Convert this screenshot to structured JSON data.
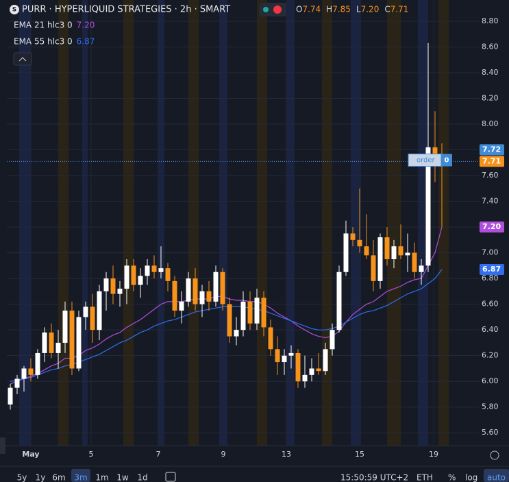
{
  "header": {
    "title": "PURR · HYPERLIQUID STRATEGIES · 2h · SMART",
    "ohlc": [
      {
        "key": "O",
        "value": "7.74"
      },
      {
        "key": "H",
        "value": "7.85"
      },
      {
        "key": "L",
        "value": "7.20"
      },
      {
        "key": "C",
        "value": "7.71"
      }
    ]
  },
  "chart_data": {
    "type": "candlestick",
    "ylim": [
      5.5,
      8.965
    ],
    "yticks": [
      {
        "value": 5.6,
        "label": "5.60"
      },
      {
        "value": 5.8,
        "label": "5.80"
      },
      {
        "value": 6,
        "label": "6.00"
      },
      {
        "value": 6.2,
        "label": "6.20"
      },
      {
        "value": 6.4,
        "label": "6.40"
      },
      {
        "value": 6.6,
        "label": "6.60"
      },
      {
        "value": 6.8,
        "label": "6.80"
      },
      {
        "value": 7,
        "label": "7.00"
      },
      {
        "value": 7.2,
        "label": "7.20"
      },
      {
        "value": 7.4,
        "label": "7.40"
      },
      {
        "value": 7.6,
        "label": "7.60"
      },
      {
        "value": 7.8,
        "label": "7.80"
      },
      {
        "value": 8,
        "label": "8.00"
      },
      {
        "value": 8.2,
        "label": "8.20"
      },
      {
        "value": 8.4,
        "label": "8.40"
      },
      {
        "value": 8.6,
        "label": "8.60"
      },
      {
        "value": 8.8,
        "label": "8.80"
      }
    ],
    "grid": true,
    "up_color": "#ffffff",
    "down_color": "#f7931a",
    "x_labels": [
      "May",
      "5",
      "7",
      "9",
      "13",
      "15",
      "19"
    ],
    "open": [
      5.82,
      5.95,
      6.02,
      6.1,
      6.05,
      6.22,
      6.38,
      6.22,
      6.3,
      6.55,
      6.1,
      6.5,
      6.58,
      6.4,
      6.7,
      6.8,
      6.68,
      6.72,
      6.9,
      6.75,
      6.82,
      6.9,
      6.85,
      6.88,
      6.78,
      6.55,
      6.62,
      6.8,
      6.6,
      6.7,
      6.62,
      6.85,
      6.6,
      6.35,
      6.4,
      6.62,
      6.45,
      6.65,
      6.42,
      6.25,
      6.15,
      6.2,
      6.22,
      6.0,
      6.05,
      6.1,
      6.08,
      6.25,
      6.4,
      6.85,
      7.15,
      7.1,
      7.05,
      6.98,
      6.78,
      7.12,
      6.95,
      7.05,
      6.98,
      7.0,
      6.85,
      6.9,
      7.82,
      7.74
    ],
    "high": [
      5.98,
      6.05,
      6.12,
      6.18,
      6.25,
      6.42,
      6.45,
      6.4,
      6.62,
      6.62,
      6.55,
      6.62,
      6.68,
      6.75,
      6.85,
      6.9,
      6.78,
      6.95,
      6.95,
      6.88,
      6.95,
      6.98,
      7.05,
      6.92,
      6.82,
      6.7,
      6.85,
      6.88,
      6.75,
      6.78,
      6.9,
      6.88,
      6.65,
      6.5,
      6.7,
      6.7,
      6.72,
      6.7,
      6.48,
      6.35,
      6.25,
      6.28,
      6.25,
      6.2,
      6.18,
      6.22,
      6.3,
      6.45,
      6.9,
      7.25,
      7.2,
      7.5,
      7.3,
      7.1,
      7.15,
      7.2,
      7.1,
      7.22,
      7.15,
      7.08,
      6.95,
      8.63,
      8.1,
      7.85
    ],
    "low": [
      5.78,
      5.9,
      5.92,
      6.0,
      6.02,
      6.15,
      6.18,
      6.1,
      6.22,
      6.05,
      6.08,
      6.4,
      6.3,
      6.32,
      6.55,
      6.6,
      6.58,
      6.6,
      6.7,
      6.65,
      6.75,
      6.8,
      6.8,
      6.7,
      6.5,
      6.45,
      6.58,
      6.55,
      6.5,
      6.55,
      6.58,
      6.55,
      6.3,
      6.28,
      6.35,
      6.4,
      6.4,
      6.35,
      6.2,
      6.05,
      6.05,
      6.1,
      5.95,
      5.95,
      6.0,
      6.05,
      6.05,
      6.2,
      6.38,
      6.82,
      7.05,
      7.0,
      6.95,
      6.7,
      6.72,
      6.9,
      6.88,
      6.95,
      6.85,
      6.8,
      6.75,
      6.85,
      7.55,
      7.2
    ],
    "close": [
      5.95,
      6.02,
      6.1,
      6.05,
      6.22,
      6.38,
      6.22,
      6.3,
      6.55,
      6.1,
      6.5,
      6.58,
      6.4,
      6.7,
      6.8,
      6.68,
      6.72,
      6.9,
      6.75,
      6.82,
      6.9,
      6.85,
      6.88,
      6.78,
      6.55,
      6.62,
      6.8,
      6.6,
      6.7,
      6.62,
      6.85,
      6.6,
      6.35,
      6.4,
      6.62,
      6.45,
      6.65,
      6.42,
      6.25,
      6.15,
      6.2,
      6.22,
      6.0,
      6.05,
      6.1,
      6.08,
      6.25,
      6.4,
      6.85,
      7.15,
      7.1,
      7.05,
      6.98,
      6.78,
      7.12,
      6.95,
      7.05,
      6.98,
      7.0,
      6.85,
      6.9,
      7.82,
      7.74,
      7.71
    ],
    "series": [
      {
        "name": "EMA 21 hlc3 0",
        "last_label": "7.20",
        "color": "#b04fdc",
        "values": [
          5.98,
          6.0,
          6.02,
          6.04,
          6.06,
          6.09,
          6.12,
          6.14,
          6.18,
          6.18,
          6.2,
          6.24,
          6.26,
          6.29,
          6.33,
          6.36,
          6.38,
          6.42,
          6.45,
          6.48,
          6.52,
          6.56,
          6.6,
          6.62,
          6.62,
          6.62,
          6.63,
          6.64,
          6.64,
          6.64,
          6.66,
          6.66,
          6.64,
          6.63,
          6.63,
          6.62,
          6.62,
          6.6,
          6.57,
          6.53,
          6.5,
          6.47,
          6.43,
          6.4,
          6.37,
          6.35,
          6.34,
          6.35,
          6.39,
          6.46,
          6.52,
          6.56,
          6.6,
          6.62,
          6.66,
          6.7,
          6.72,
          6.74,
          6.77,
          6.79,
          6.8,
          6.9,
          7.0,
          7.2
        ]
      },
      {
        "name": "EMA 55 hlc3 0",
        "last_label": "6.87",
        "color": "#2f6ff0",
        "values": [
          6.0,
          6.01,
          6.02,
          6.03,
          6.05,
          6.07,
          6.09,
          6.1,
          6.12,
          6.13,
          6.15,
          6.17,
          6.19,
          6.21,
          6.24,
          6.27,
          6.3,
          6.32,
          6.35,
          6.38,
          6.4,
          6.43,
          6.45,
          6.47,
          6.48,
          6.5,
          6.52,
          6.54,
          6.55,
          6.56,
          6.57,
          6.58,
          6.58,
          6.58,
          6.58,
          6.57,
          6.56,
          6.55,
          6.53,
          6.51,
          6.49,
          6.47,
          6.45,
          6.43,
          6.41,
          6.4,
          6.4,
          6.41,
          6.43,
          6.46,
          6.49,
          6.52,
          6.54,
          6.55,
          6.57,
          6.59,
          6.62,
          6.65,
          6.68,
          6.7,
          6.72,
          6.76,
          6.8,
          6.87
        ]
      }
    ],
    "price_labels": [
      {
        "value": 7.72,
        "label": "7.72",
        "color": "#3d8bd9"
      },
      {
        "value": 7.71,
        "label": "7.71",
        "color": "#f7931a"
      },
      {
        "value": 7.2,
        "label": "7.20",
        "color": "#b04fdc"
      },
      {
        "value": 6.87,
        "label": "6.87",
        "color": "#2f6ff0"
      }
    ],
    "order": {
      "label": "order",
      "quantity": "0"
    }
  },
  "toolbar": {
    "ranges": [
      "5y",
      "1y",
      "6m",
      "3m",
      "1m",
      "1w",
      "1d"
    ],
    "time": "15:50:59 UTC+2",
    "currency": "ETH",
    "percent": "%",
    "log": "log",
    "auto": "auto"
  }
}
